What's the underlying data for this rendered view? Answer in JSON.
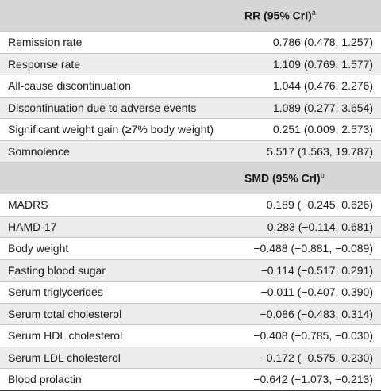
{
  "sections": [
    {
      "header": {
        "text": "RR (95% CrI)",
        "sup": "a"
      },
      "rows": [
        [
          "Remission rate",
          "0.786 (0.478, 1.257)"
        ],
        [
          "Response rate",
          "1.109 (0.769, 1.577)"
        ],
        [
          "All-cause discontinuation",
          "1.044 (0.476, 2.276)"
        ],
        [
          "Discontinuation due to adverse events",
          "1.089 (0.277, 3.654)"
        ],
        [
          "Significant weight gain (≥7% body weight)",
          "0.251 (0.009, 2.573)"
        ],
        [
          "Somnolence",
          "5.517 (1.563, 19.787)"
        ]
      ]
    },
    {
      "header": {
        "text": "SMD (95% CrI)",
        "sup": "b"
      },
      "rows": [
        [
          "MADRS",
          "0.189 (−0.245, 0.626)"
        ],
        [
          "HAMD-17",
          "0.283 (−0.114, 0.681)"
        ],
        [
          "Body weight",
          "−0.488 (−0.881, −0.089)"
        ],
        [
          "Fasting blood sugar",
          "−0.114 (−0.517, 0.291)"
        ],
        [
          "Serum triglycerides",
          "−0.011 (−0.407, 0.390)"
        ],
        [
          "Serum total cholesterol",
          "−0.086 (−0.483, 0.314)"
        ],
        [
          "Serum HDL cholesterol",
          "−0.408 (−0.785, −0.030)"
        ],
        [
          "Serum LDL cholesterol",
          "−0.172 (−0.575, 0.230)"
        ],
        [
          "Blood prolactin",
          "−0.642 (−1.073, −0.213)"
        ]
      ]
    }
  ]
}
